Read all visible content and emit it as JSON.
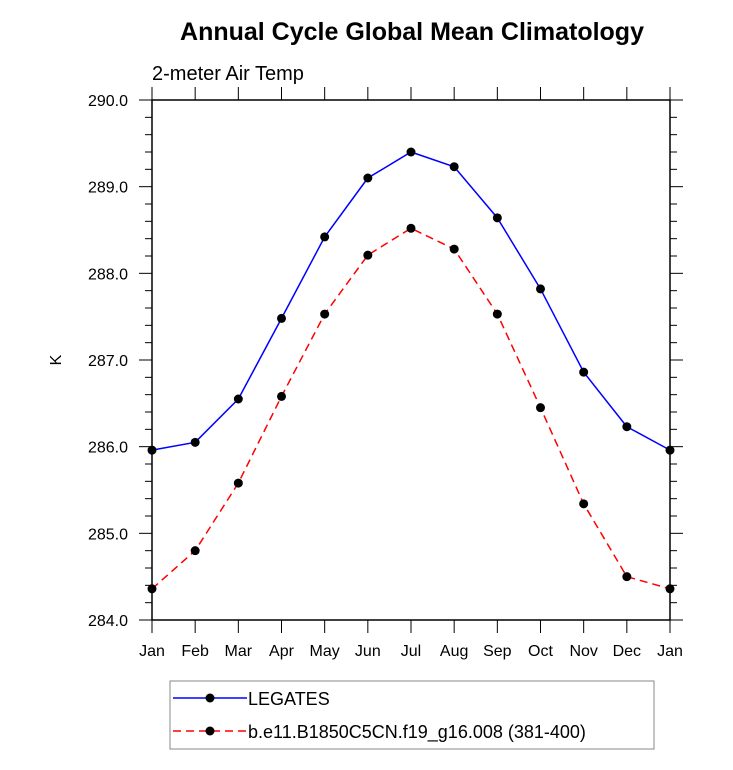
{
  "chart_data": {
    "type": "line",
    "title": "Annual Cycle Global Mean Climatology",
    "subtitle": "2-meter Air Temp",
    "xlabel": "",
    "ylabel": "K",
    "categories": [
      "Jan",
      "Feb",
      "Mar",
      "Apr",
      "May",
      "Jun",
      "Jul",
      "Aug",
      "Sep",
      "Oct",
      "Nov",
      "Dec",
      "Jan"
    ],
    "ylim": [
      284.0,
      290.0
    ],
    "yticks": [
      "284.0",
      "285.0",
      "286.0",
      "287.0",
      "288.0",
      "289.0",
      "290.0"
    ],
    "ytick_values": [
      284,
      285,
      286,
      287,
      288,
      289,
      290
    ],
    "y_minor_step": 0.2,
    "grid": false,
    "legend_position": "bottom",
    "series": [
      {
        "name": "LEGATES",
        "color": "#0000ff",
        "dash": "solid",
        "marker": "filled-circle",
        "values": [
          285.96,
          286.05,
          286.55,
          287.48,
          288.42,
          289.1,
          289.4,
          289.23,
          288.64,
          287.82,
          286.86,
          286.23,
          285.96
        ]
      },
      {
        "name": "b.e11.B1850C5CN.f19_g16.008 (381-400)",
        "color": "#ff0000",
        "dash": "dashed",
        "marker": "filled-circle",
        "values": [
          284.36,
          284.8,
          285.58,
          286.58,
          287.53,
          288.21,
          288.52,
          288.28,
          287.53,
          286.45,
          285.34,
          284.5,
          284.36
        ]
      }
    ]
  }
}
